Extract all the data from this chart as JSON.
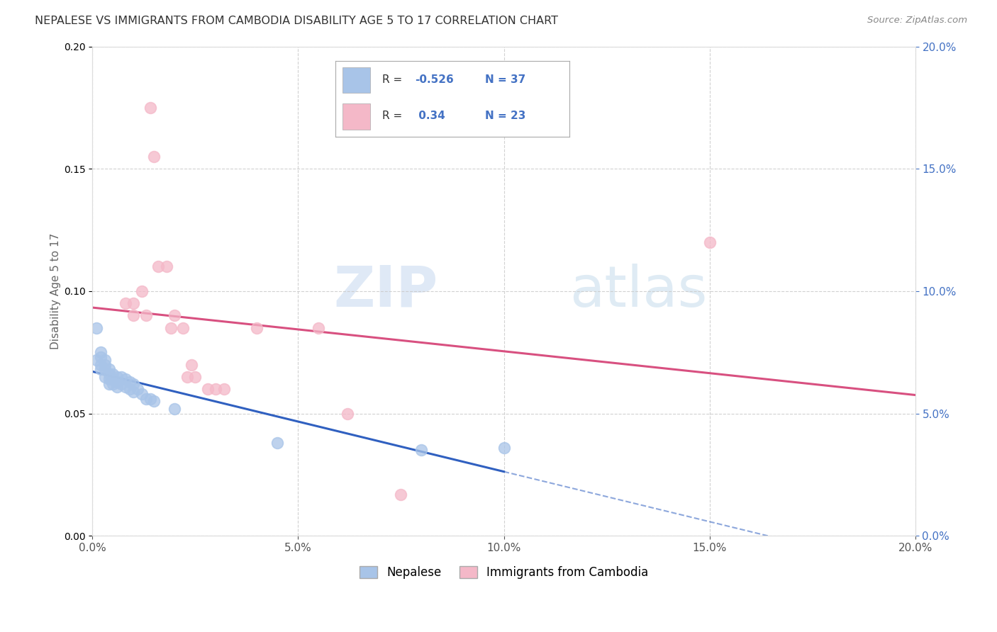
{
  "title": "NEPALESE VS IMMIGRANTS FROM CAMBODIA DISABILITY AGE 5 TO 17 CORRELATION CHART",
  "source": "Source: ZipAtlas.com",
  "ylabel": "Disability Age 5 to 17",
  "x_min": 0.0,
  "x_max": 0.2,
  "y_min": 0.0,
  "y_max": 0.2,
  "watermark_zip": "ZIP",
  "watermark_atlas": "atlas",
  "legend_nepalese": "Nepalese",
  "legend_cambodia": "Immigrants from Cambodia",
  "R_nepalese": -0.526,
  "N_nepalese": 37,
  "R_cambodia": 0.34,
  "N_cambodia": 23,
  "nepalese_color": "#a8c4e8",
  "cambodia_color": "#f4b8c8",
  "nepalese_line_color": "#3060c0",
  "cambodia_line_color": "#d85080",
  "nepalese_points": [
    [
      0.001,
      0.085
    ],
    [
      0.001,
      0.072
    ],
    [
      0.002,
      0.075
    ],
    [
      0.002,
      0.073
    ],
    [
      0.002,
      0.07
    ],
    [
      0.002,
      0.068
    ],
    [
      0.003,
      0.072
    ],
    [
      0.003,
      0.07
    ],
    [
      0.003,
      0.068
    ],
    [
      0.003,
      0.065
    ],
    [
      0.004,
      0.068
    ],
    [
      0.004,
      0.066
    ],
    [
      0.004,
      0.064
    ],
    [
      0.004,
      0.062
    ],
    [
      0.005,
      0.066
    ],
    [
      0.005,
      0.064
    ],
    [
      0.005,
      0.062
    ],
    [
      0.006,
      0.065
    ],
    [
      0.006,
      0.063
    ],
    [
      0.006,
      0.061
    ],
    [
      0.007,
      0.065
    ],
    [
      0.007,
      0.062
    ],
    [
      0.008,
      0.064
    ],
    [
      0.008,
      0.061
    ],
    [
      0.009,
      0.063
    ],
    [
      0.009,
      0.06
    ],
    [
      0.01,
      0.062
    ],
    [
      0.01,
      0.059
    ],
    [
      0.011,
      0.06
    ],
    [
      0.012,
      0.058
    ],
    [
      0.013,
      0.056
    ],
    [
      0.014,
      0.056
    ],
    [
      0.015,
      0.055
    ],
    [
      0.02,
      0.052
    ],
    [
      0.045,
      0.038
    ],
    [
      0.08,
      0.035
    ],
    [
      0.1,
      0.036
    ]
  ],
  "cambodia_points": [
    [
      0.008,
      0.095
    ],
    [
      0.01,
      0.095
    ],
    [
      0.01,
      0.09
    ],
    [
      0.012,
      0.1
    ],
    [
      0.013,
      0.09
    ],
    [
      0.014,
      0.175
    ],
    [
      0.015,
      0.155
    ],
    [
      0.016,
      0.11
    ],
    [
      0.018,
      0.11
    ],
    [
      0.019,
      0.085
    ],
    [
      0.02,
      0.09
    ],
    [
      0.022,
      0.085
    ],
    [
      0.023,
      0.065
    ],
    [
      0.024,
      0.07
    ],
    [
      0.025,
      0.065
    ],
    [
      0.028,
      0.06
    ],
    [
      0.03,
      0.06
    ],
    [
      0.032,
      0.06
    ],
    [
      0.04,
      0.085
    ],
    [
      0.055,
      0.085
    ],
    [
      0.062,
      0.05
    ],
    [
      0.075,
      0.017
    ],
    [
      0.15,
      0.12
    ]
  ]
}
